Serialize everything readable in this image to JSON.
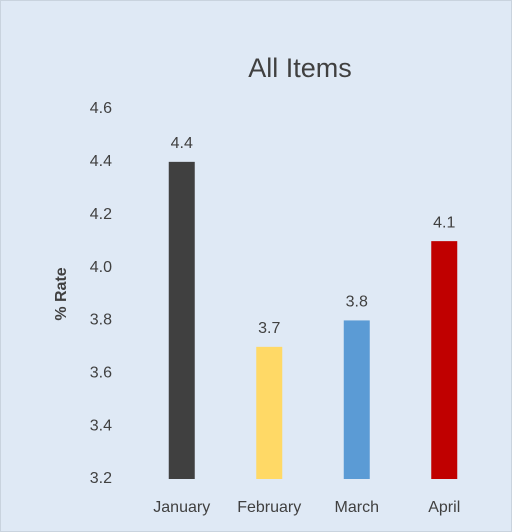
{
  "chart_data": {
    "type": "bar",
    "title": "All Items",
    "y_label": "% Rate",
    "categories": [
      "January",
      "February",
      "March",
      "April"
    ],
    "values": [
      4.4,
      3.7,
      3.8,
      4.1
    ],
    "colors": [
      "#404040",
      "#ffd966",
      "#5b9bd5",
      "#c00000"
    ],
    "ylim": [
      3.2,
      4.6
    ],
    "yticks": [
      3.2,
      3.4,
      3.6,
      3.8,
      {
        "value": 4,
        "label": "4.0"
      },
      4.2,
      4.4,
      4.6
    ],
    "grid": false
  }
}
